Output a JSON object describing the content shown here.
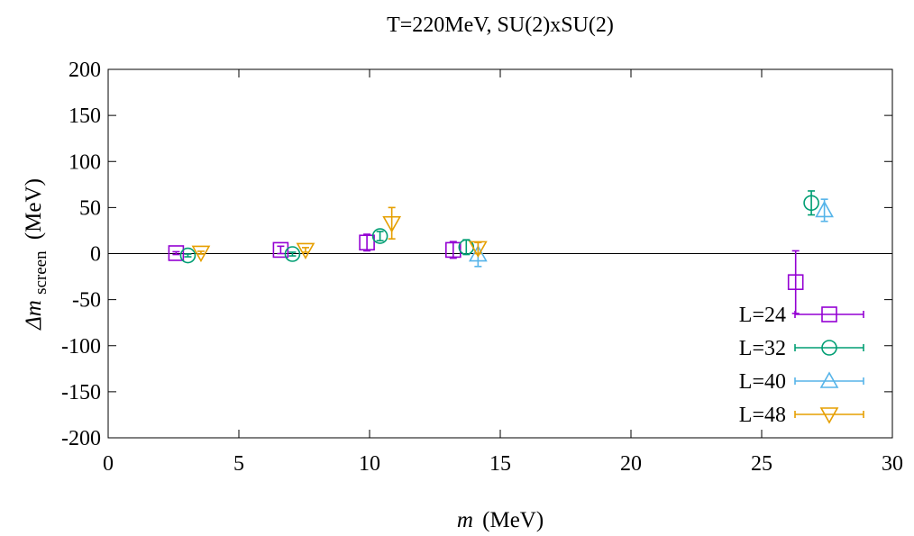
{
  "chart_data": {
    "type": "scatter",
    "title": "T=220MeV, SU(2)xSU(2)",
    "xlabel_main": "m",
    "xlabel_unit": "(MeV)",
    "ylabel_prefix": "Δm",
    "ylabel_sub": "screen",
    "ylabel_unit": "(MeV)",
    "xlim": [
      0,
      30
    ],
    "ylim": [
      -200,
      200
    ],
    "xticks": [
      0,
      5,
      10,
      15,
      20,
      25,
      30
    ],
    "yticks": [
      200,
      150,
      100,
      50,
      0,
      -50,
      -100,
      -150,
      -200
    ],
    "grid": false,
    "zero_line": true,
    "legend_position": "bottom-right",
    "series": [
      {
        "name": "L=24",
        "marker": "square",
        "color": "#9400d3",
        "points": [
          {
            "x": 2.6,
            "y": 0.5,
            "err": 1.5
          },
          {
            "x": 6.6,
            "y": 4,
            "err": 4
          },
          {
            "x": 9.9,
            "y": 12,
            "err": 9
          },
          {
            "x": 13.2,
            "y": 4,
            "err": 9
          },
          {
            "x": 26.3,
            "y": -31,
            "err": 34
          }
        ]
      },
      {
        "name": "L=32",
        "marker": "circle",
        "color": "#009e73",
        "points": [
          {
            "x": 3.05,
            "y": -2,
            "err": 1.5
          },
          {
            "x": 7.05,
            "y": -0.5,
            "err": 2
          },
          {
            "x": 10.4,
            "y": 19,
            "err": 5
          },
          {
            "x": 13.7,
            "y": 7,
            "err": 8
          },
          {
            "x": 26.9,
            "y": 55,
            "err": 13
          }
        ]
      },
      {
        "name": "L=40",
        "marker": "triangle-up",
        "color": "#56b4e9",
        "points": [
          {
            "x": 14.15,
            "y": -1,
            "err": 13
          },
          {
            "x": 27.4,
            "y": 47,
            "err": 12
          }
        ]
      },
      {
        "name": "L=48",
        "marker": "triangle-down",
        "color": "#e69f00",
        "points": [
          {
            "x": 3.55,
            "y": 1,
            "err": 1.5
          },
          {
            "x": 7.55,
            "y": 4,
            "err": 2.5
          },
          {
            "x": 10.85,
            "y": 33,
            "err": 17
          },
          {
            "x": 14.15,
            "y": 6,
            "err": 6
          }
        ]
      }
    ]
  }
}
